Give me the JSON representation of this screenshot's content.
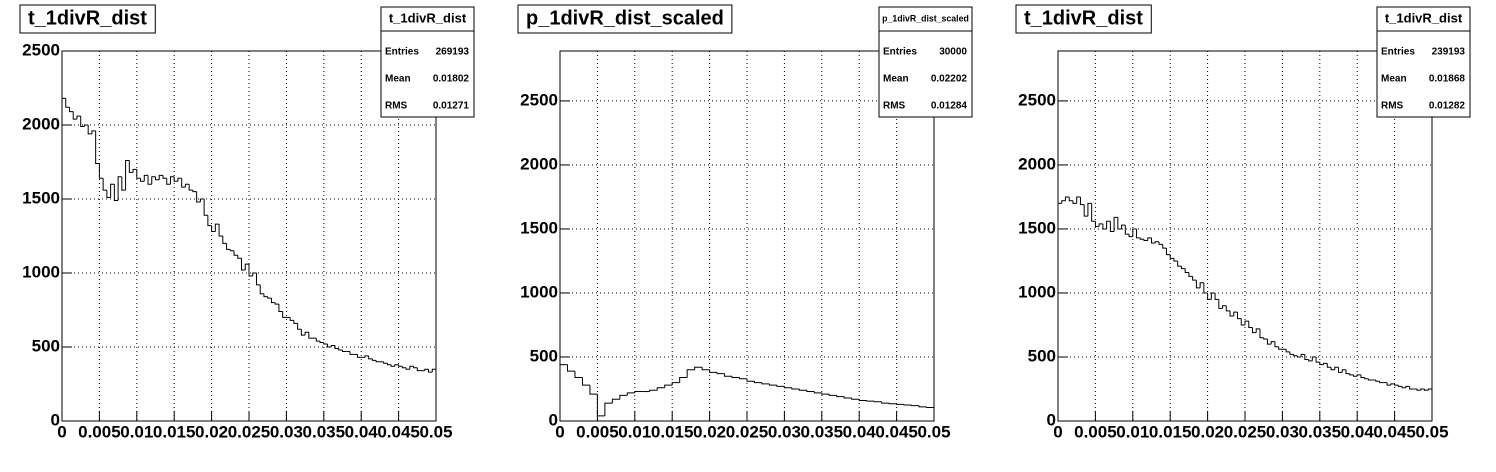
{
  "chart_data": [
    {
      "type": "histogram",
      "title": "t_1divR_dist",
      "stats_title": "t_1divR_dist",
      "stats": [
        {
          "label": "Entries",
          "value": 269193
        },
        {
          "label": "Mean",
          "value": 0.01802
        },
        {
          "label": "RMS",
          "value": 0.01271
        }
      ],
      "bins": [
        0,
        0.0005,
        0.001,
        0.0015,
        0.002,
        0.0025,
        0.003,
        0.0035,
        0.004,
        0.0045,
        0.005,
        0.0055,
        0.006,
        0.0065,
        0.007,
        0.0075,
        0.008,
        0.0085,
        0.009,
        0.0095,
        0.01,
        0.0105,
        0.011,
        0.0115,
        0.012,
        0.0125,
        0.013,
        0.0135,
        0.014,
        0.0145,
        0.015,
        0.0155,
        0.016,
        0.0165,
        0.017,
        0.0175,
        0.018,
        0.0185,
        0.019,
        0.0195,
        0.02,
        0.0205,
        0.021,
        0.0215,
        0.022,
        0.0225,
        0.023,
        0.0235,
        0.024,
        0.0245,
        0.025,
        0.0255,
        0.026,
        0.0265,
        0.027,
        0.0275,
        0.028,
        0.0285,
        0.029,
        0.0295,
        0.03,
        0.0305,
        0.031,
        0.0315,
        0.032,
        0.0325,
        0.033,
        0.0335,
        0.034,
        0.0345,
        0.035,
        0.0355,
        0.036,
        0.0365,
        0.037,
        0.0375,
        0.038,
        0.0385,
        0.039,
        0.0395,
        0.04,
        0.0405,
        0.041,
        0.0415,
        0.042,
        0.0425,
        0.043,
        0.0435,
        0.044,
        0.0445,
        0.045,
        0.0455,
        0.046,
        0.0465,
        0.047,
        0.0475,
        0.048,
        0.0485,
        0.049,
        0.0495,
        0.05
      ],
      "values": [
        2180,
        2120,
        2090,
        2040,
        2060,
        1990,
        2000,
        1940,
        1960,
        1740,
        1640,
        1560,
        1510,
        1600,
        1490,
        1650,
        1560,
        1760,
        1680,
        1700,
        1640,
        1620,
        1660,
        1600,
        1650,
        1630,
        1660,
        1640,
        1600,
        1650,
        1620,
        1640,
        1580,
        1600,
        1560,
        1550,
        1480,
        1500,
        1390,
        1320,
        1280,
        1330,
        1250,
        1200,
        1160,
        1150,
        1120,
        1100,
        1020,
        1060,
        980,
        1000,
        920,
        860,
        840,
        830,
        800,
        790,
        740,
        700,
        700,
        680,
        660,
        620,
        580,
        600,
        560,
        560,
        540,
        530,
        520,
        500,
        510,
        490,
        480,
        470,
        470,
        450,
        450,
        430,
        430,
        440,
        420,
        410,
        400,
        400,
        390,
        380,
        370,
        380,
        370,
        360,
        350,
        370,
        360,
        340,
        340,
        350,
        330,
        350
      ],
      "xlim": [
        0,
        0.05
      ],
      "ylim": [
        0,
        2500
      ],
      "xticks": [
        0,
        0.005,
        0.01,
        0.015,
        0.02,
        0.025,
        0.03,
        0.035,
        0.04,
        0.045,
        0.05
      ],
      "yticks": [
        0,
        500,
        1000,
        1500,
        2000,
        2500
      ],
      "grid": true,
      "color": "#000000"
    },
    {
      "type": "histogram",
      "title": "p_1divR_dist_scaled",
      "stats_title": "p_1divR_dist_scaled",
      "stats": [
        {
          "label": "Entries",
          "value": 30000
        },
        {
          "label": "Mean",
          "value": 0.02202
        },
        {
          "label": "RMS",
          "value": 0.01284
        }
      ],
      "bins": [
        0,
        0.001,
        0.002,
        0.003,
        0.004,
        0.005,
        0.006,
        0.007,
        0.008,
        0.009,
        0.01,
        0.011,
        0.012,
        0.013,
        0.014,
        0.015,
        0.016,
        0.017,
        0.018,
        0.019,
        0.02,
        0.021,
        0.022,
        0.023,
        0.024,
        0.025,
        0.026,
        0.027,
        0.028,
        0.029,
        0.03,
        0.031,
        0.032,
        0.033,
        0.034,
        0.035,
        0.036,
        0.037,
        0.038,
        0.039,
        0.04,
        0.041,
        0.042,
        0.043,
        0.044,
        0.045,
        0.046,
        0.047,
        0.048,
        0.049,
        0.05
      ],
      "values": [
        440,
        390,
        340,
        280,
        210,
        40,
        140,
        170,
        200,
        220,
        230,
        230,
        240,
        260,
        280,
        300,
        340,
        400,
        420,
        400,
        380,
        370,
        350,
        340,
        330,
        310,
        300,
        290,
        280,
        270,
        260,
        250,
        240,
        230,
        220,
        210,
        200,
        190,
        180,
        170,
        160,
        155,
        150,
        140,
        135,
        130,
        125,
        120,
        110,
        105
      ],
      "xlim": [
        0,
        0.05
      ],
      "ylim": [
        0,
        2890
      ],
      "xticks": [
        0,
        0.005,
        0.01,
        0.015,
        0.02,
        0.025,
        0.03,
        0.035,
        0.04,
        0.045,
        0.05
      ],
      "yticks": [
        0,
        500,
        1000,
        1500,
        2000,
        2500
      ],
      "grid": true,
      "color": "#000000"
    },
    {
      "type": "histogram",
      "title": "t_1divR_dist",
      "stats_title": "t_1divR_dist",
      "stats": [
        {
          "label": "Entries",
          "value": 239193
        },
        {
          "label": "Mean",
          "value": 0.01868
        },
        {
          "label": "RMS",
          "value": 0.01282
        }
      ],
      "bins": [
        0,
        0.0005,
        0.001,
        0.0015,
        0.002,
        0.0025,
        0.003,
        0.0035,
        0.004,
        0.0045,
        0.005,
        0.0055,
        0.006,
        0.0065,
        0.007,
        0.0075,
        0.008,
        0.0085,
        0.009,
        0.0095,
        0.01,
        0.0105,
        0.011,
        0.0115,
        0.012,
        0.0125,
        0.013,
        0.0135,
        0.014,
        0.0145,
        0.015,
        0.0155,
        0.016,
        0.0165,
        0.017,
        0.0175,
        0.018,
        0.0185,
        0.019,
        0.0195,
        0.02,
        0.0205,
        0.021,
        0.0215,
        0.022,
        0.0225,
        0.023,
        0.0235,
        0.024,
        0.0245,
        0.025,
        0.0255,
        0.026,
        0.0265,
        0.027,
        0.0275,
        0.028,
        0.0285,
        0.029,
        0.0295,
        0.03,
        0.0305,
        0.031,
        0.0315,
        0.032,
        0.0325,
        0.033,
        0.0335,
        0.034,
        0.0345,
        0.035,
        0.0355,
        0.036,
        0.0365,
        0.037,
        0.0375,
        0.038,
        0.0385,
        0.039,
        0.0395,
        0.04,
        0.0405,
        0.041,
        0.0415,
        0.042,
        0.0425,
        0.043,
        0.0435,
        0.044,
        0.0445,
        0.045,
        0.0455,
        0.046,
        0.0465,
        0.047,
        0.0475,
        0.048,
        0.0485,
        0.049,
        0.0495,
        0.05
      ],
      "values": [
        1700,
        1720,
        1750,
        1720,
        1700,
        1750,
        1690,
        1600,
        1700,
        1560,
        1520,
        1540,
        1500,
        1560,
        1480,
        1590,
        1500,
        1530,
        1460,
        1440,
        1500,
        1430,
        1420,
        1410,
        1430,
        1390,
        1400,
        1380,
        1350,
        1300,
        1270,
        1250,
        1210,
        1190,
        1160,
        1130,
        1100,
        1040,
        1080,
        1000,
        950,
        1000,
        950,
        880,
        900,
        860,
        820,
        850,
        800,
        750,
        780,
        730,
        690,
        720,
        650,
        640,
        600,
        620,
        580,
        560,
        560,
        540,
        520,
        510,
        500,
        520,
        480,
        470,
        500,
        460,
        440,
        450,
        420,
        400,
        420,
        380,
        400,
        370,
        360,
        350,
        360,
        340,
        330,
        320,
        320,
        310,
        300,
        300,
        280,
        290,
        280,
        270,
        260,
        270,
        250,
        250,
        240,
        250,
        240,
        250
      ],
      "xlim": [
        0,
        0.05
      ],
      "ylim": [
        0,
        2890
      ],
      "xticks": [
        0,
        0.005,
        0.01,
        0.015,
        0.02,
        0.025,
        0.03,
        0.035,
        0.04,
        0.045,
        0.05
      ],
      "yticks": [
        0,
        500,
        1000,
        1500,
        2000,
        2500
      ],
      "grid": true,
      "color": "#000000"
    }
  ]
}
